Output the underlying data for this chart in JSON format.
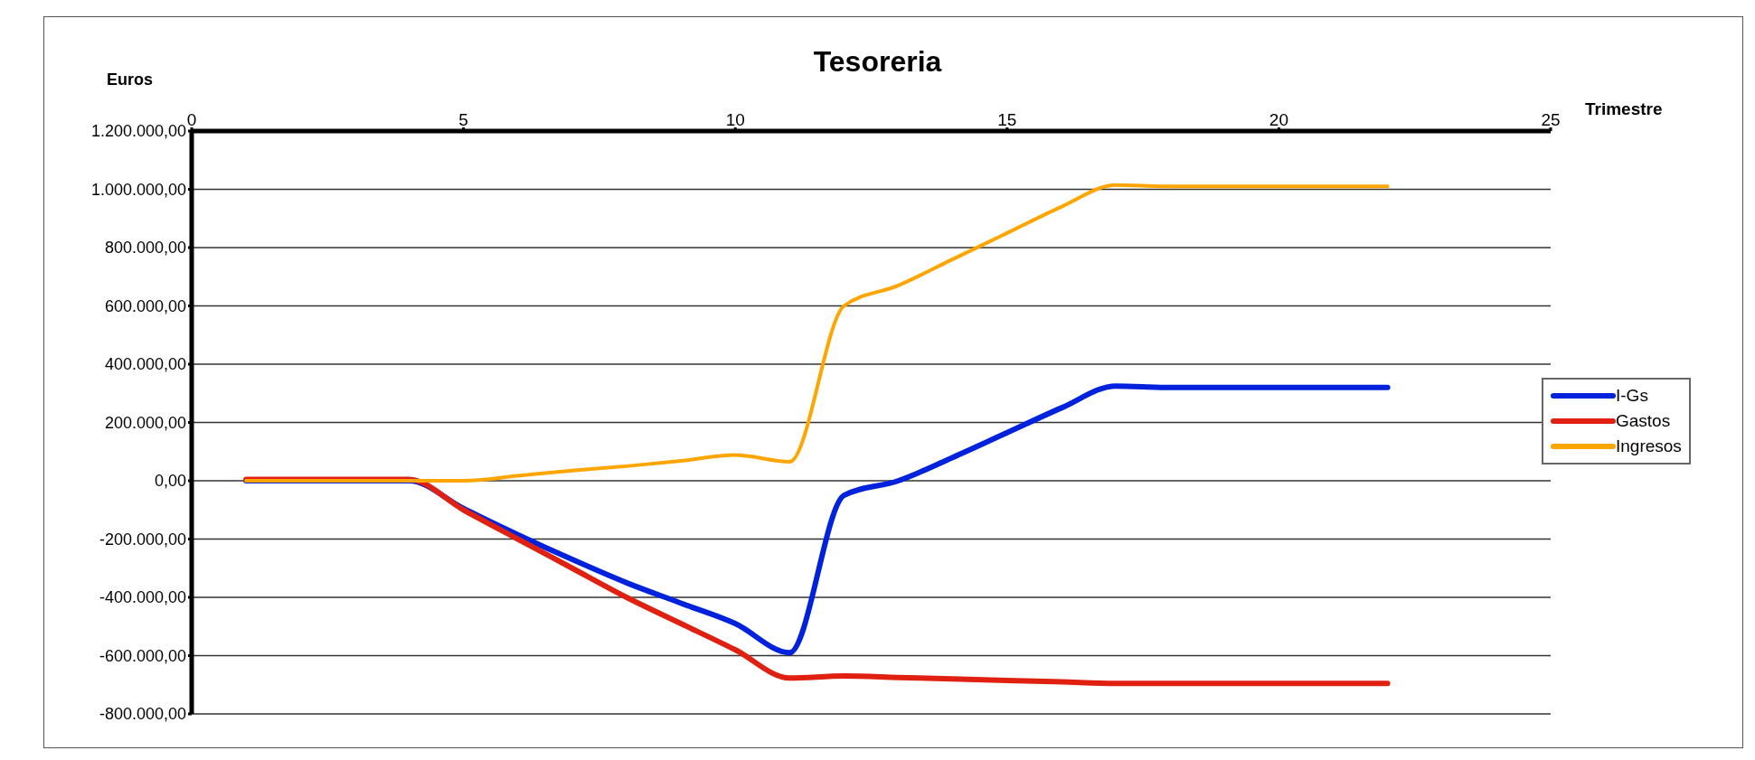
{
  "chart_data": {
    "type": "line",
    "title": "Tesoreria",
    "xlabel": "Trimestre",
    "ylabel": "Euros",
    "x": [
      1,
      4,
      5,
      6,
      7,
      8,
      9,
      10,
      11,
      12,
      13,
      14,
      15,
      16,
      17,
      18,
      22
    ],
    "series": [
      {
        "name": "I-Gs",
        "color": "#0022dd",
        "values": [
          0,
          0,
          -95000,
          -185000,
          -270000,
          -350000,
          -420000,
          -490000,
          -590000,
          -50000,
          0,
          80000,
          165000,
          250000,
          325000,
          320000,
          320000
        ]
      },
      {
        "name": "Gastos",
        "color": "#e02010",
        "values": [
          5000,
          5000,
          -100000,
          -200000,
          -300000,
          -400000,
          -490000,
          -580000,
          -677000,
          -670000,
          -675000,
          -680000,
          -685000,
          -690000,
          -695000,
          -695000,
          -695000
        ]
      },
      {
        "name": "Ingresos",
        "color": "#ffa500",
        "values": [
          0,
          0,
          0,
          17000,
          35000,
          50000,
          68000,
          88000,
          65000,
          600000,
          670000,
          760000,
          850000,
          940000,
          1015000,
          1010000,
          1010000
        ]
      }
    ],
    "xlim": [
      0,
      25
    ],
    "xticks": [
      0,
      5,
      10,
      15,
      20,
      25
    ],
    "ylim": [
      -800000,
      1200000
    ],
    "yticks": [
      {
        "value": -800000,
        "label": "-800.000,00"
      },
      {
        "value": -600000,
        "label": "-600.000,00"
      },
      {
        "value": -400000,
        "label": "-400.000,00"
      },
      {
        "value": -200000,
        "label": "-200.000,00"
      },
      {
        "value": 0,
        "label": "0,00"
      },
      {
        "value": 200000,
        "label": "200.000,00"
      },
      {
        "value": 400000,
        "label": "400.000,00"
      },
      {
        "value": 600000,
        "label": "600.000,00"
      },
      {
        "value": 800000,
        "label": "800.000,00"
      },
      {
        "value": 1000000,
        "label": "1.000.000,00"
      },
      {
        "value": 1200000,
        "label": "1.200.000,00"
      }
    ],
    "grid": "y",
    "legend": "right",
    "marker": "none",
    "line_style": "solid"
  }
}
